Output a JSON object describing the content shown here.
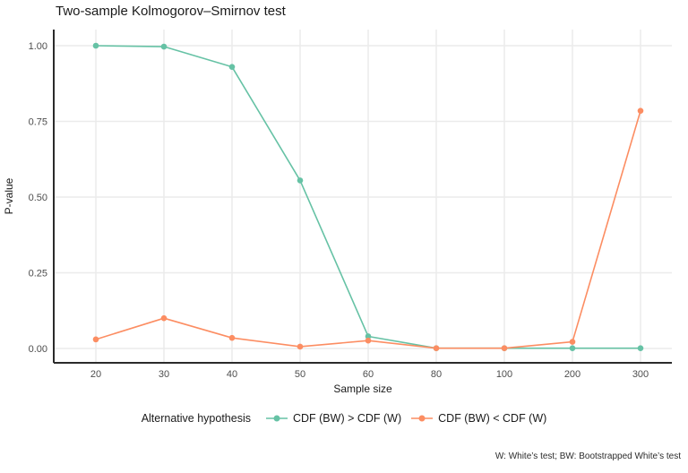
{
  "title": "Two-sample Kolmogorov–Smirnov test",
  "legend": {
    "title": "Alternative hypothesis",
    "items": [
      {
        "label": "CDF (BW) > CDF (W)",
        "color": "#66C2A5"
      },
      {
        "label": "CDF (BW) < CDF (W)",
        "color": "#FC8D62"
      }
    ]
  },
  "caption": "W: White’s test; BW: Bootstrapped White’s test",
  "chart_data": {
    "type": "line",
    "title": "Two-sample Kolmogorov–Smirnov test",
    "xlabel": "Sample size",
    "ylabel": "P-value",
    "categories": [
      "20",
      "30",
      "40",
      "50",
      "60",
      "80",
      "100",
      "200",
      "300"
    ],
    "y_ticks": [
      {
        "value": 0.0,
        "label": "0.00"
      },
      {
        "value": 0.25,
        "label": "0.25"
      },
      {
        "value": 0.5,
        "label": "0.50"
      },
      {
        "value": 0.75,
        "label": "0.75"
      },
      {
        "value": 1.0,
        "label": "1.00"
      }
    ],
    "ylim": [
      0,
      1
    ],
    "grid": true,
    "legend_position": "bottom",
    "legend_title": "Alternative hypothesis",
    "series": [
      {
        "name": "CDF (BW) > CDF (W)",
        "color": "#66C2A5",
        "values": [
          1.0,
          0.997,
          0.93,
          0.555,
          0.04,
          0.001,
          0.001,
          0.001,
          0.001
        ]
      },
      {
        "name": "CDF (BW) < CDF (W)",
        "color": "#FC8D62",
        "values": [
          0.03,
          0.1,
          0.035,
          0.006,
          0.026,
          0.001,
          0.001,
          0.022,
          0.785
        ]
      }
    ],
    "caption": "W: White’s test; BW: Bootstrapped White’s test",
    "style": {
      "grid_color": "#ebebeb",
      "axis_line_color": "#2b2b2b",
      "tick_text_color": "#4d4d4d"
    }
  }
}
